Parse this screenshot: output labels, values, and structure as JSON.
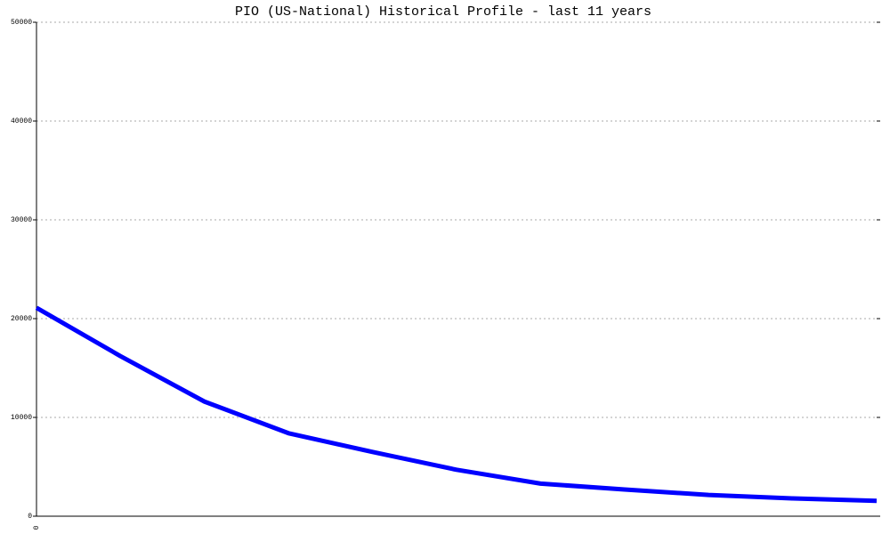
{
  "chart_data": {
    "type": "line",
    "title": "PIO (US-National) Historical Profile - last 11 years",
    "categories": [
      "0",
      null,
      null,
      null,
      null,
      null,
      null,
      null,
      null,
      null,
      null
    ],
    "series": [
      {
        "name": "PIO",
        "color": "#0000ff",
        "values": [
          21100,
          16200,
          11600,
          8400,
          6500,
          4700,
          3300,
          2700,
          2150,
          1800,
          1550
        ]
      }
    ],
    "ylim": [
      0,
      50000
    ],
    "yticks": [
      0,
      10000,
      20000,
      30000,
      40000,
      50000
    ],
    "grid": true
  }
}
